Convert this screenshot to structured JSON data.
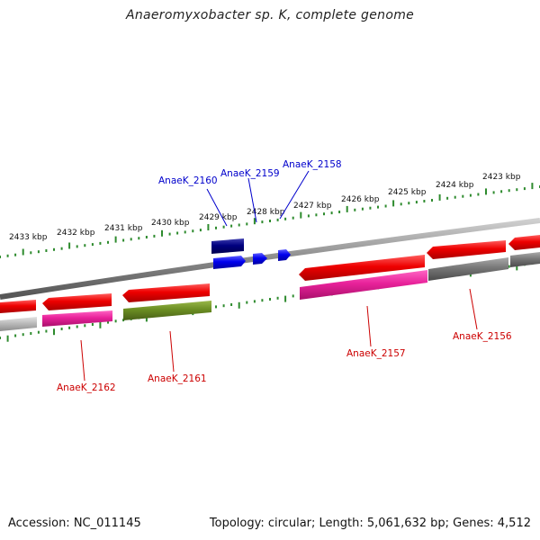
{
  "title": "Anaeromyxobacter sp. K, complete genome",
  "footer": {
    "accession": "Accession: NC_011145",
    "topology": "Topology: circular; Length: 5,061,632 bp; Genes: 4,512"
  },
  "scale_labels": [
    "2433 kbp",
    "2432 kbp",
    "2431 kbp",
    "2430 kbp",
    "2429 kbp",
    "2428 kbp",
    "2427 kbp",
    "2426 kbp",
    "2425 kbp",
    "2424 kbp",
    "2423 kbp"
  ],
  "gene_labels": [
    {
      "text": "AnaeK_2160",
      "color": "#0000cc"
    },
    {
      "text": "AnaeK_2159",
      "color": "#0000cc"
    },
    {
      "text": "AnaeK_2158",
      "color": "#0000cc"
    },
    {
      "text": "AnaeK_2162",
      "color": "#cc0000"
    },
    {
      "text": "AnaeK_2161",
      "color": "#cc0000"
    },
    {
      "text": "AnaeK_2157",
      "color": "#cc0000"
    },
    {
      "text": "AnaeK_2156",
      "color": "#cc0000"
    }
  ],
  "colors": {
    "cds_red": "#ee0000",
    "rna_pink": "#ee2299",
    "olive": "#6b8e23",
    "grey": "#777777",
    "navy": "#000080",
    "blue": "#0000ee",
    "tick_green": "#2e8b2e"
  }
}
